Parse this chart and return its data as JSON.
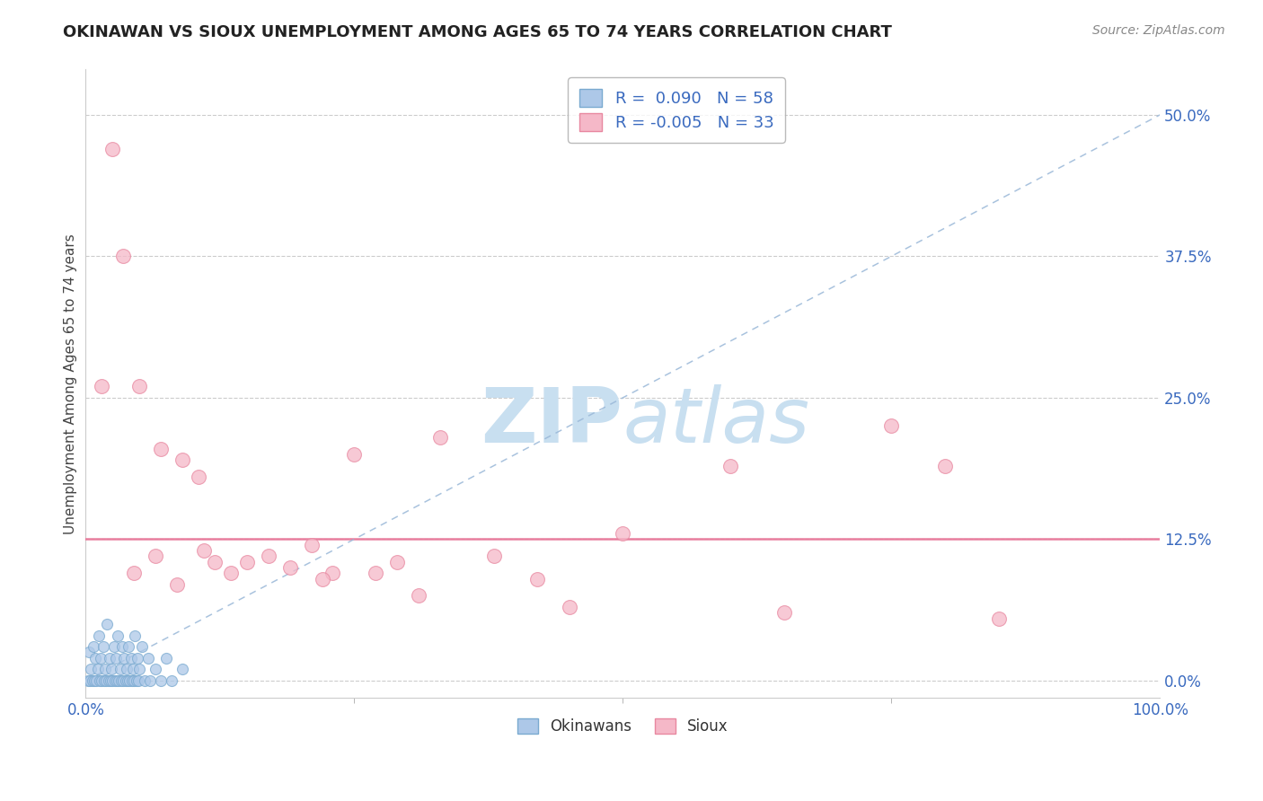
{
  "title": "OKINAWAN VS SIOUX UNEMPLOYMENT AMONG AGES 65 TO 74 YEARS CORRELATION CHART",
  "source": "Source: ZipAtlas.com",
  "ylabel": "Unemployment Among Ages 65 to 74 years",
  "ytick_values": [
    0.0,
    12.5,
    25.0,
    37.5,
    50.0
  ],
  "xlim": [
    0.0,
    100.0
  ],
  "ylim": [
    -1.5,
    54.0
  ],
  "legend_r_okinawan": "0.090",
  "legend_n_okinawan": "58",
  "legend_r_sioux": "-0.005",
  "legend_n_sioux": "33",
  "okinawan_color": "#adc8e8",
  "okinawan_edge": "#7aaad0",
  "sioux_color": "#f5b8c8",
  "sioux_edge": "#e888a0",
  "trendline_color": "#9ab8d8",
  "regression_sioux_color": "#e8789a",
  "regression_sioux_y": 12.5,
  "watermark_zip": "ZIP",
  "watermark_atlas": "atlas",
  "watermark_color_zip": "#c8dff0",
  "watermark_color_atlas": "#c8dff0",
  "okinawan_x": [
    0.2,
    0.3,
    0.4,
    0.5,
    0.6,
    0.7,
    0.8,
    0.9,
    1.0,
    1.1,
    1.2,
    1.3,
    1.4,
    1.5,
    1.6,
    1.7,
    1.8,
    1.9,
    2.0,
    2.1,
    2.2,
    2.3,
    2.4,
    2.5,
    2.6,
    2.7,
    2.8,
    2.9,
    3.0,
    3.1,
    3.2,
    3.3,
    3.4,
    3.5,
    3.6,
    3.7,
    3.8,
    3.9,
    4.0,
    4.1,
    4.2,
    4.3,
    4.4,
    4.5,
    4.6,
    4.7,
    4.8,
    4.9,
    5.0,
    5.2,
    5.5,
    5.8,
    6.0,
    6.5,
    7.0,
    7.5,
    8.0,
    9.0
  ],
  "okinawan_y": [
    0.0,
    2.5,
    0.0,
    1.0,
    0.0,
    3.0,
    0.0,
    2.0,
    0.0,
    1.0,
    4.0,
    0.0,
    2.0,
    0.0,
    3.0,
    0.0,
    1.0,
    0.0,
    5.0,
    0.0,
    2.0,
    0.0,
    1.0,
    0.0,
    3.0,
    0.0,
    2.0,
    0.0,
    4.0,
    0.0,
    1.0,
    0.0,
    3.0,
    0.0,
    2.0,
    0.0,
    1.0,
    0.0,
    3.0,
    0.0,
    2.0,
    0.0,
    1.0,
    0.0,
    4.0,
    0.0,
    2.0,
    0.0,
    1.0,
    3.0,
    0.0,
    2.0,
    0.0,
    1.0,
    0.0,
    2.0,
    0.0,
    1.0
  ],
  "sioux_x": [
    2.5,
    3.5,
    5.0,
    7.0,
    9.0,
    10.5,
    11.0,
    12.0,
    13.5,
    15.0,
    17.0,
    19.0,
    21.0,
    23.0,
    25.0,
    27.0,
    29.0,
    31.0,
    33.0,
    38.0,
    42.0,
    50.0,
    60.0,
    65.0,
    75.0,
    80.0,
    85.0,
    1.5,
    4.5,
    6.5,
    8.5,
    22.0,
    45.0
  ],
  "sioux_y": [
    47.0,
    37.5,
    26.0,
    20.5,
    19.5,
    18.0,
    11.5,
    10.5,
    9.5,
    10.5,
    11.0,
    10.0,
    12.0,
    9.5,
    20.0,
    9.5,
    10.5,
    7.5,
    21.5,
    11.0,
    9.0,
    13.0,
    19.0,
    6.0,
    22.5,
    19.0,
    5.5,
    26.0,
    9.5,
    11.0,
    8.5,
    9.0,
    6.5
  ]
}
